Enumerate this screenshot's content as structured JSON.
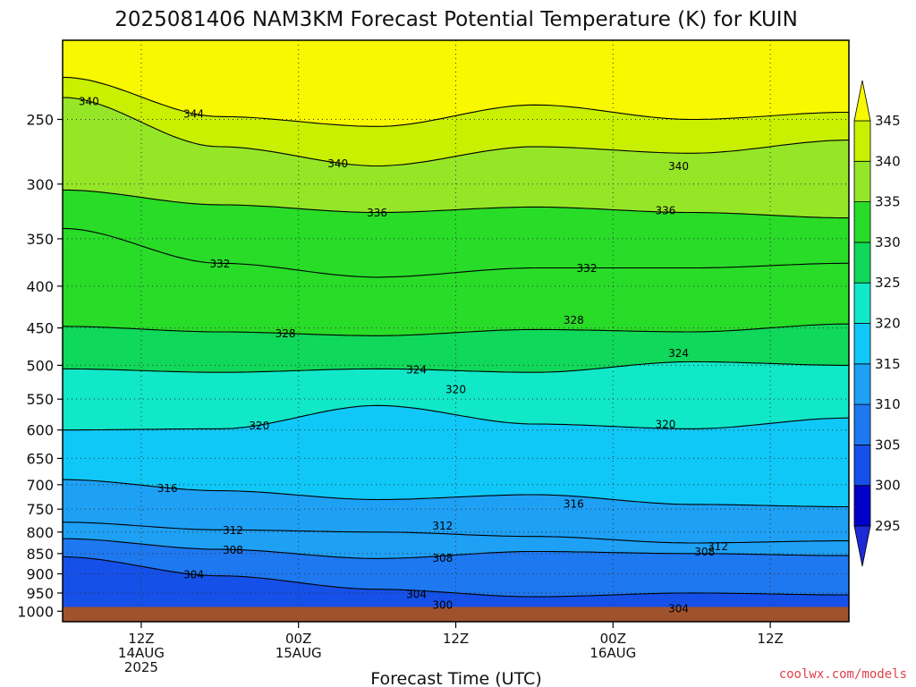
{
  "chart_data": {
    "type": "heatmap",
    "title": "2025081406 NAM3KM Forecast Potential Temperature (K) for KUIN",
    "xlabel": "Forecast Time (UTC)",
    "ylabel": "",
    "x_unit_hours_from_start": "0 = 2025-08-14 06Z",
    "xlim_hours": [
      0,
      60
    ],
    "ylim": [
      1030,
      200
    ],
    "y_scale": "log (pressure, hPa)",
    "grid": true,
    "y_ticks": [
      250,
      300,
      350,
      400,
      450,
      500,
      550,
      600,
      650,
      700,
      750,
      800,
      850,
      900,
      950,
      1000
    ],
    "x_ticks": [
      {
        "hour": 6,
        "lines": [
          "12Z",
          "14AUG",
          "2025"
        ]
      },
      {
        "hour": 18,
        "lines": [
          "00Z",
          "15AUG"
        ]
      },
      {
        "hour": 30,
        "lines": [
          "12Z"
        ]
      },
      {
        "hour": 42,
        "lines": [
          "00Z",
          "16AUG"
        ]
      },
      {
        "hour": 54,
        "lines": [
          "12Z"
        ]
      }
    ],
    "colorbar": {
      "levels": [
        295,
        300,
        305,
        310,
        315,
        320,
        325,
        330,
        335,
        340,
        345
      ],
      "colors": [
        "#1e2ad6",
        "#0000c8",
        "#1550e8",
        "#1e78f0",
        "#1ea0f5",
        "#10c8f8",
        "#10e8c8",
        "#10d85a",
        "#28dc28",
        "#96e628",
        "#c8f000",
        "#f8f800"
      ],
      "extend": "both"
    },
    "profile_times": [
      0,
      12,
      24,
      36,
      48,
      60
    ],
    "isentropes": [
      {
        "theta": 304,
        "pressures": [
          858,
          905,
          940,
          960,
          950,
          955
        ],
        "label": "304",
        "label_hour": 10
      },
      {
        "theta": 308,
        "pressures": [
          815,
          840,
          862,
          845,
          850,
          855
        ],
        "label": "308",
        "label_hour": 13
      },
      {
        "theta": 312,
        "pressures": [
          778,
          795,
          800,
          810,
          825,
          820
        ],
        "label": "312",
        "label_hour": 13
      },
      {
        "theta": 316,
        "pressures": [
          690,
          712,
          730,
          720,
          740,
          745
        ],
        "label": "316",
        "label_hour": 8
      },
      {
        "theta": 320,
        "pressures": [
          600,
          598,
          560,
          590,
          598,
          580
        ],
        "label": "320",
        "label_hour": 15
      },
      {
        "theta": 324,
        "pressures": [
          505,
          510,
          505,
          510,
          495,
          500
        ],
        "label": "324",
        "label_hour": 27
      },
      {
        "theta": 328,
        "pressures": [
          448,
          455,
          460,
          452,
          455,
          445
        ],
        "label": "328",
        "label_hour": 17
      },
      {
        "theta": 332,
        "pressures": [
          340,
          375,
          390,
          380,
          380,
          375
        ],
        "label": "332",
        "label_hour": 12
      },
      {
        "theta": 336,
        "pressures": [
          305,
          318,
          325,
          320,
          325,
          330
        ],
        "label": "336",
        "label_hour": 24
      },
      {
        "theta": 340,
        "pressures": [
          235,
          270,
          285,
          270,
          275,
          265
        ],
        "label": "340",
        "label_hour": 2
      },
      {
        "theta": 344,
        "pressures": [
          222,
          248,
          255,
          240,
          250,
          245
        ],
        "label": "344",
        "label_hour": 10
      }
    ],
    "extra_contour_labels": [
      {
        "theta": 340,
        "hour": 21,
        "pressure": 283
      },
      {
        "theta": 340,
        "hour": 47,
        "pressure": 285
      },
      {
        "theta": 336,
        "hour": 46,
        "pressure": 323
      },
      {
        "theta": 332,
        "hour": 40,
        "pressure": 380
      },
      {
        "theta": 328,
        "hour": 39,
        "pressure": 440
      },
      {
        "theta": 324,
        "hour": 47,
        "pressure": 483
      },
      {
        "theta": 320,
        "hour": 30,
        "pressure": 535
      },
      {
        "theta": 320,
        "hour": 46,
        "pressure": 590
      },
      {
        "theta": 316,
        "hour": 39,
        "pressure": 738
      },
      {
        "theta": 312,
        "hour": 29,
        "pressure": 785
      },
      {
        "theta": 312,
        "hour": 50,
        "pressure": 832
      },
      {
        "theta": 308,
        "hour": 29,
        "pressure": 860
      },
      {
        "theta": 308,
        "hour": 49,
        "pressure": 845
      },
      {
        "theta": 304,
        "hour": 27,
        "pressure": 953
      },
      {
        "theta": 304,
        "hour": 47,
        "pressure": 992
      },
      {
        "theta": 300,
        "hour": 29,
        "pressure": 982
      }
    ],
    "ground_color": "#a0522d",
    "ground_top_pressure": 988
  },
  "credit": "coolwx.com/models"
}
